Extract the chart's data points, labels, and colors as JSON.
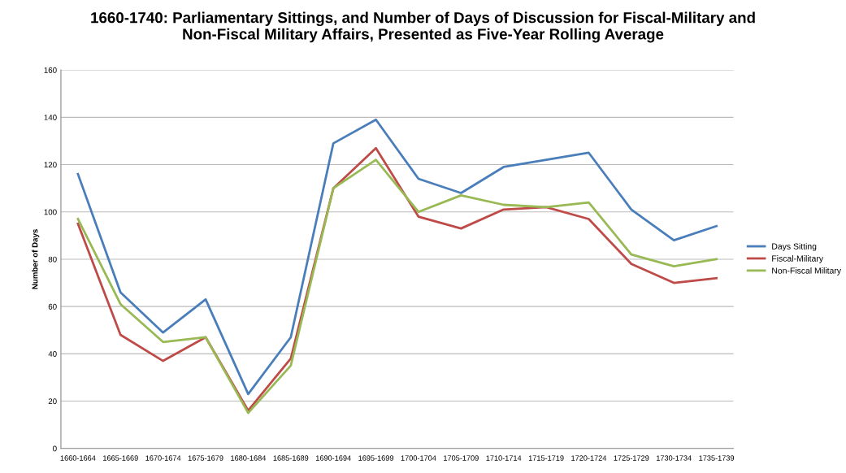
{
  "chart_data": {
    "type": "line",
    "title": "1660-1740: Parliamentary Sittings, and Number of Days of Discussion for Fiscal-Military and\nNon-Fiscal Military Affairs, Presented as Five-Year Rolling Average",
    "ylabel": "Number of Days",
    "categories": [
      "1660-1664",
      "1665-1669",
      "1670-1674",
      "1675-1679",
      "1680-1684",
      "1685-1689",
      "1690-1694",
      "1695-1699",
      "1700-1704",
      "1705-1709",
      "1710-1714",
      "1715-1719",
      "1720-1724",
      "1725-1729",
      "1730-1734",
      "1735-1739"
    ],
    "series": [
      {
        "name": "Days Sitting",
        "color": "#4a7ebb",
        "values": [
          116,
          66,
          49,
          63,
          23,
          47,
          129,
          139,
          114,
          108,
          119,
          122,
          125,
          101,
          88,
          94
        ]
      },
      {
        "name": "Fiscal-Military",
        "color": "#be4b48",
        "values": [
          95,
          48,
          37,
          47,
          16,
          38,
          110,
          127,
          98,
          93,
          101,
          102,
          97,
          78,
          70,
          72
        ]
      },
      {
        "name": "Non-Fiscal Military",
        "color": "#98b954",
        "values": [
          97,
          61,
          45,
          47,
          15,
          35,
          110,
          122,
          100,
          107,
          103,
          102,
          104,
          82,
          77,
          80
        ]
      }
    ],
    "ylim": [
      0,
      160
    ],
    "yticks": [
      0,
      20,
      40,
      60,
      80,
      100,
      120,
      140,
      160
    ],
    "grid": "y",
    "legend": "right",
    "marker": "none",
    "line_style": "solid"
  }
}
